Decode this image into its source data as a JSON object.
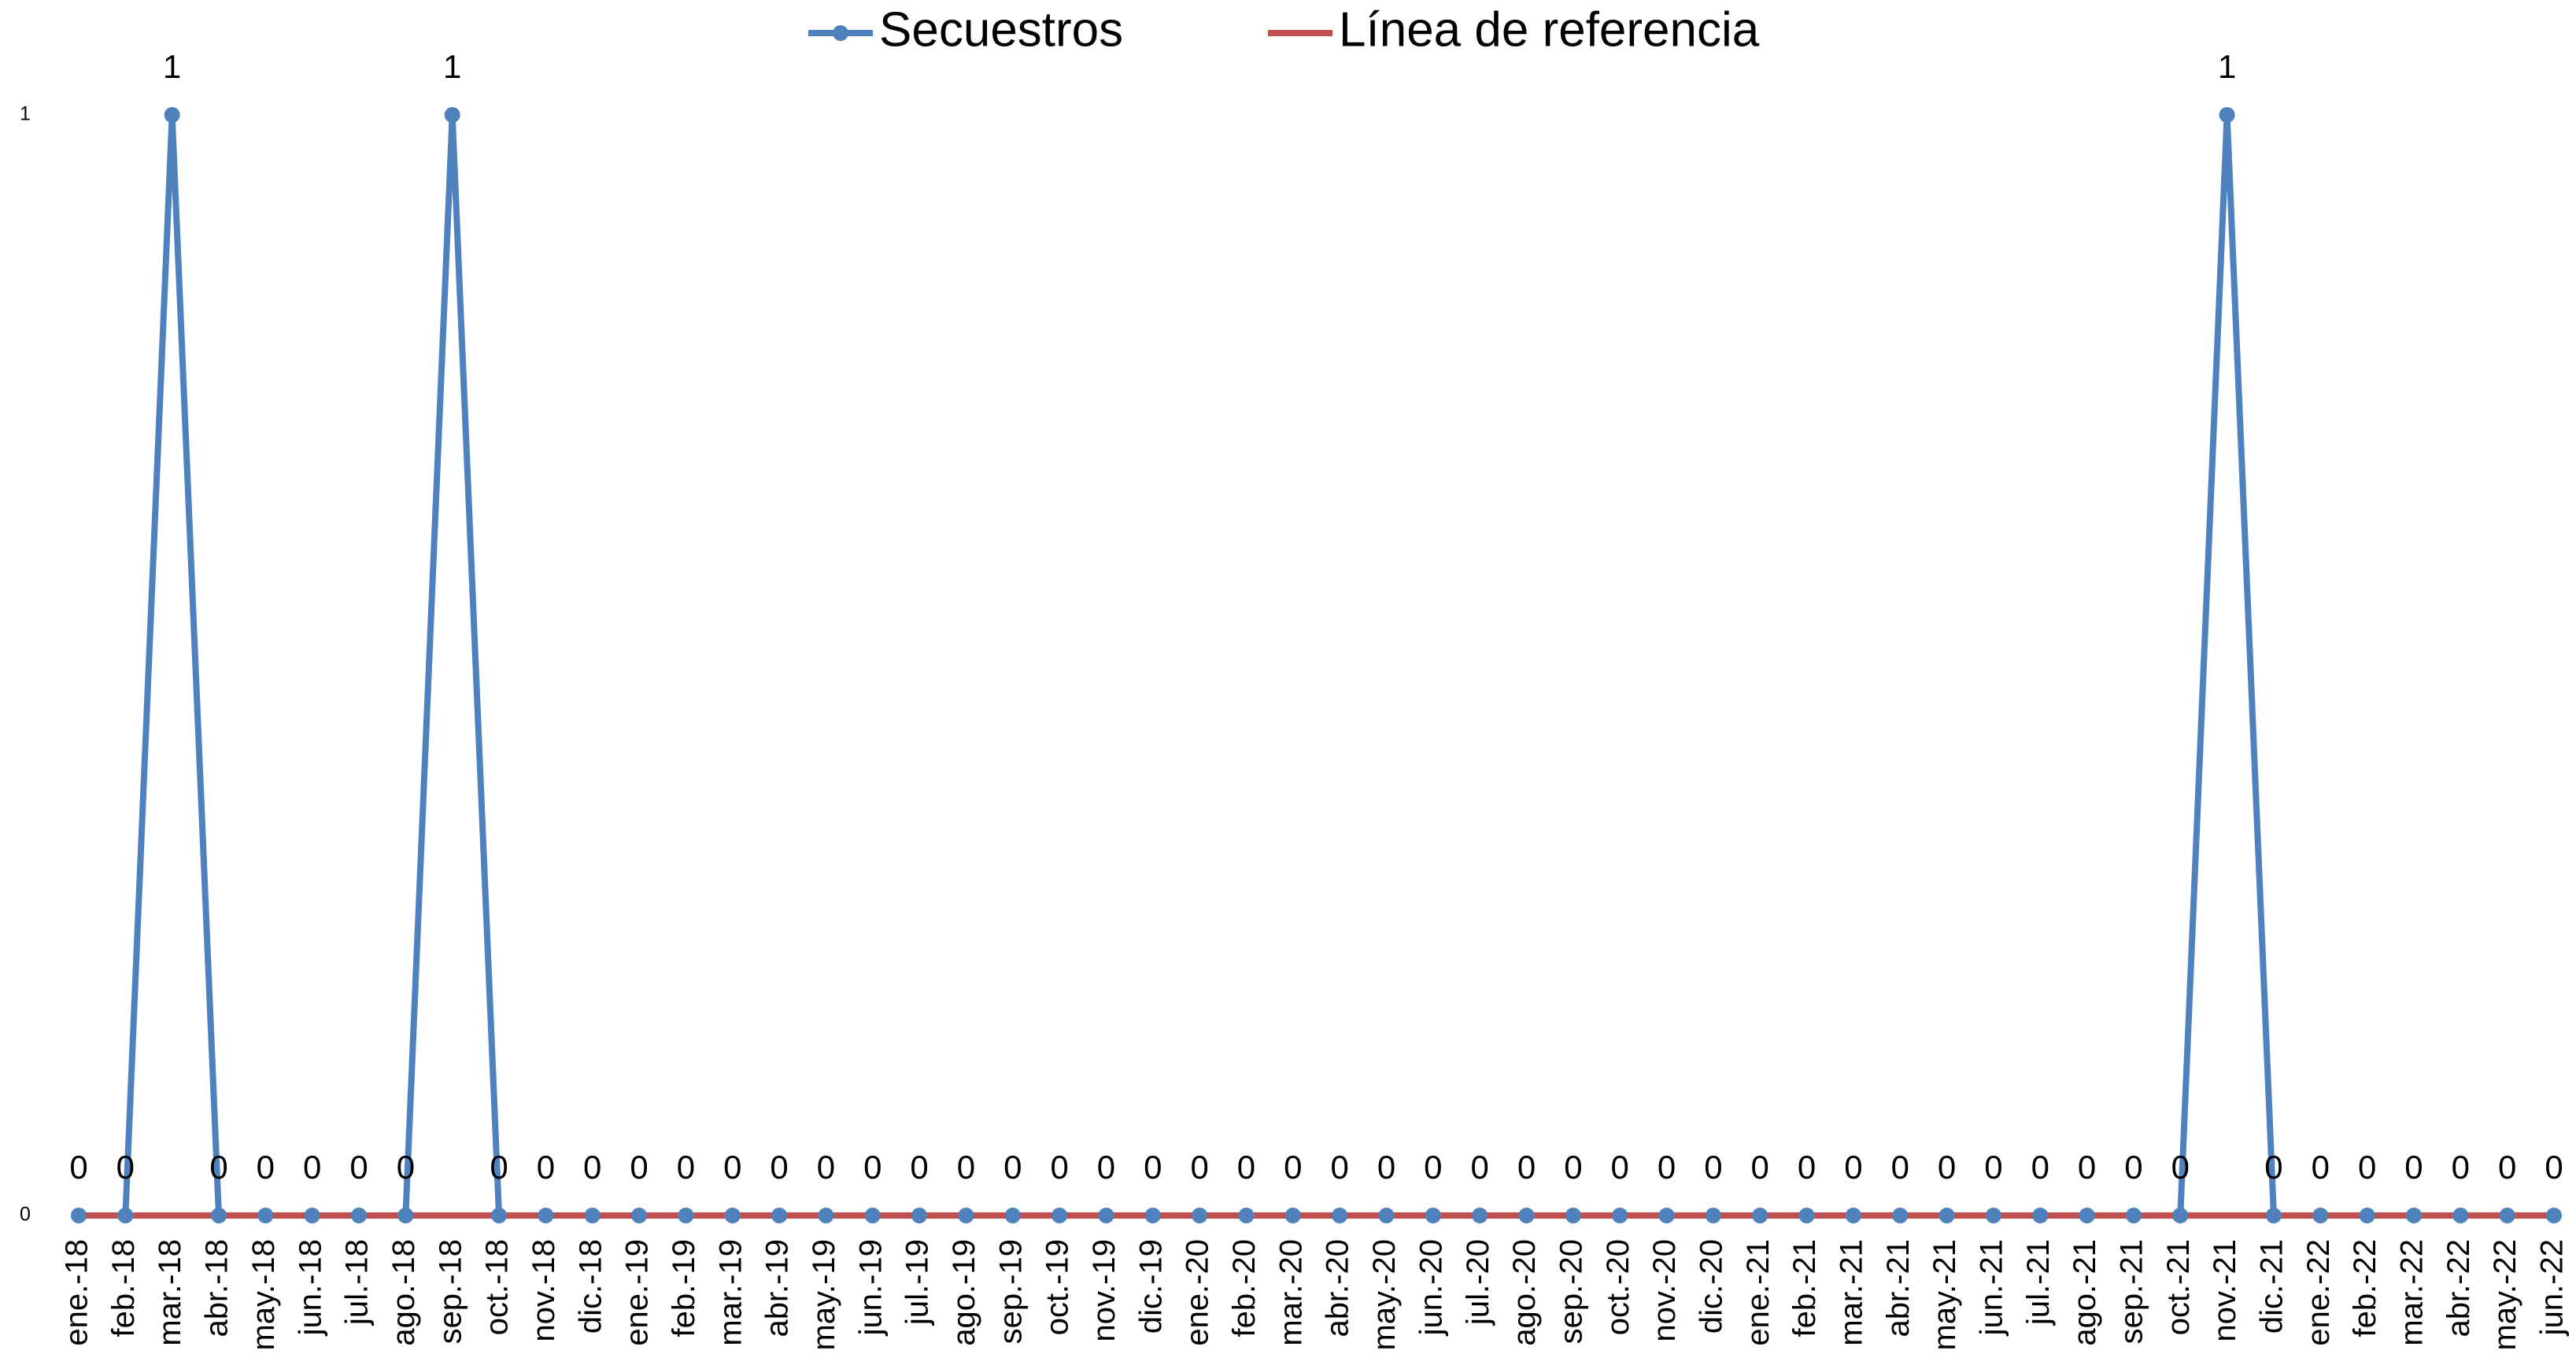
{
  "chart_data": {
    "type": "line",
    "categories": [
      "ene.-18",
      "feb.-18",
      "mar.-18",
      "abr.-18",
      "may.-18",
      "jun.-18",
      "jul.-18",
      "ago.-18",
      "sep.-18",
      "oct.-18",
      "nov.-18",
      "dic.-18",
      "ene.-19",
      "feb.-19",
      "mar.-19",
      "abr.-19",
      "may.-19",
      "jun.-19",
      "jul.-19",
      "ago.-19",
      "sep.-19",
      "oct.-19",
      "nov.-19",
      "dic.-19",
      "ene.-20",
      "feb.-20",
      "mar.-20",
      "abr.-20",
      "may.-20",
      "jun.-20",
      "jul.-20",
      "ago.-20",
      "sep.-20",
      "oct.-20",
      "nov.-20",
      "dic.-20",
      "ene.-21",
      "feb.-21",
      "mar.-21",
      "abr.-21",
      "may.-21",
      "jun.-21",
      "jul.-21",
      "ago.-21",
      "sep.-21",
      "oct.-21",
      "nov.-21",
      "dic.-21",
      "ene.-22",
      "feb.-22",
      "mar.-22",
      "abr.-22",
      "may.-22",
      "jun.-22"
    ],
    "series": [
      {
        "name": "Secuestros",
        "color": "#4f81bd",
        "markers": true,
        "data_labels": true,
        "values": [
          0,
          0,
          1,
          0,
          0,
          0,
          0,
          0,
          1,
          0,
          0,
          0,
          0,
          0,
          0,
          0,
          0,
          0,
          0,
          0,
          0,
          0,
          0,
          0,
          0,
          0,
          0,
          0,
          0,
          0,
          0,
          0,
          0,
          0,
          0,
          0,
          0,
          0,
          0,
          0,
          0,
          0,
          0,
          0,
          0,
          0,
          1,
          0,
          0,
          0,
          0,
          0,
          0,
          0
        ]
      },
      {
        "name": "Línea de referencia",
        "color": "#c0504d",
        "markers": false,
        "data_labels": false,
        "values": [
          0,
          0,
          0,
          0,
          0,
          0,
          0,
          0,
          0,
          0,
          0,
          0,
          0,
          0,
          0,
          0,
          0,
          0,
          0,
          0,
          0,
          0,
          0,
          0,
          0,
          0,
          0,
          0,
          0,
          0,
          0,
          0,
          0,
          0,
          0,
          0,
          0,
          0,
          0,
          0,
          0,
          0,
          0,
          0,
          0,
          0,
          0,
          0,
          0,
          0,
          0,
          0,
          0,
          0
        ]
      }
    ],
    "ylim": [
      0,
      1
    ],
    "yticks": [
      0,
      1
    ],
    "grid": false,
    "legend": "top"
  }
}
